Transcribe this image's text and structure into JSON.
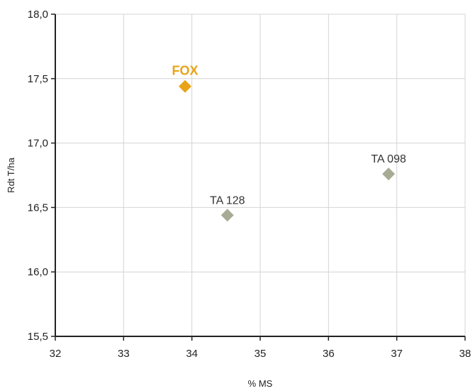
{
  "chart_data": {
    "type": "scatter",
    "title": "",
    "xlabel": "% MS",
    "ylabel": "Rdt T/ha",
    "xlim": [
      32,
      38
    ],
    "ylim": [
      15.5,
      18.0
    ],
    "x_ticks": [
      "32",
      "33",
      "34",
      "35",
      "36",
      "37",
      "38"
    ],
    "y_ticks": [
      "15,5",
      "16,0",
      "16,5",
      "17,0",
      "17,5",
      "18,0"
    ],
    "grid": true,
    "marker": "diamond",
    "points": [
      {
        "label": "FOX",
        "x": 33.9,
        "y": 17.44,
        "color": "#E8A317",
        "highlight": true
      },
      {
        "label": "TA 128",
        "x": 34.52,
        "y": 16.44,
        "color": "#A8AB94",
        "highlight": false
      },
      {
        "label": "TA 098",
        "x": 36.88,
        "y": 16.76,
        "color": "#A8AB94",
        "highlight": false
      }
    ]
  }
}
